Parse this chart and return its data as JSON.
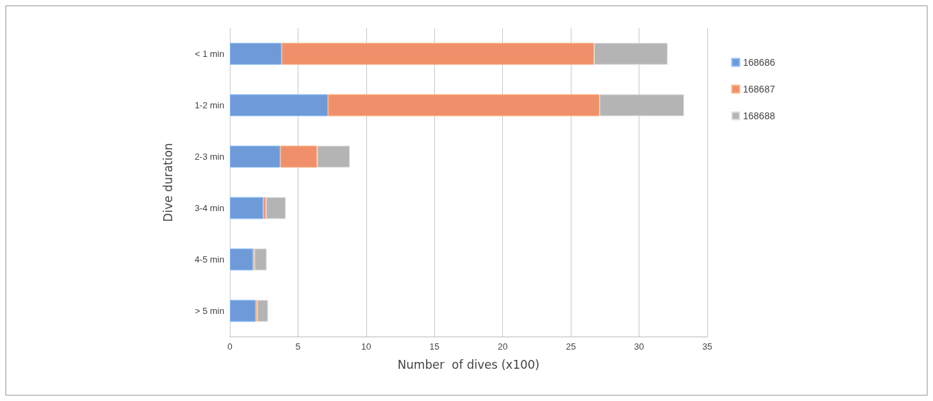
{
  "chart_data": {
    "type": "bar",
    "orientation": "horizontal",
    "stacked": true,
    "xlabel": "Number  of dives (x100)",
    "ylabel": "Dive duration",
    "categories": [
      "< 1 min",
      "1-2 min",
      "2-3 min",
      "3-4 min",
      "4-5 min",
      "> 5 min"
    ],
    "series": [
      {
        "name": "168686",
        "color": "#6f9ad8",
        "values": [
          3.8,
          7.2,
          3.7,
          2.45,
          1.7,
          1.9
        ]
      },
      {
        "name": "168687",
        "color": "#f0906a",
        "values": [
          22.9,
          19.9,
          2.7,
          0.2,
          0.1,
          0.1
        ]
      },
      {
        "name": "168688",
        "color": "#b4b4b4",
        "values": [
          5.4,
          6.2,
          2.4,
          1.45,
          0.9,
          0.8
        ]
      }
    ],
    "xlim": [
      0,
      35
    ],
    "xticks": [
      0,
      5,
      10,
      15,
      20,
      25,
      30,
      35
    ],
    "grid": "x",
    "legend": "right"
  }
}
